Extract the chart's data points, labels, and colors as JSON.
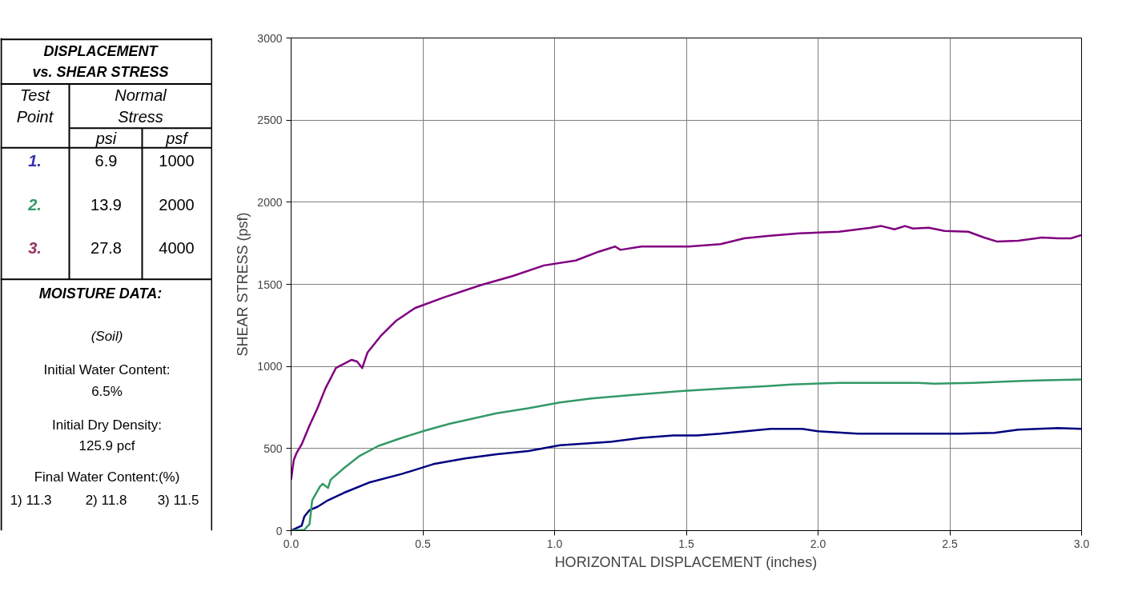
{
  "chart_data": [
    {
      "type": "other",
      "title": "DISPLACEMENT vs. SHEAR STRESS",
      "colors": [
        "#3333aa",
        "#339966",
        "#993366"
      ],
      "annotations": [
        "Test Point",
        "Normal Stress",
        "psi",
        "psf",
        "1.",
        "6.9",
        "1000",
        "2.",
        "13.9",
        "2000",
        "3.",
        "27.8",
        "4000",
        "MOISTURE DATA:",
        "(Soil)",
        "Initial Water Content:",
        "6.5%",
        "Initial Dry Density:",
        "125.9 pcf",
        "Final Water Content:(%)",
        "1) 11.3",
        "2) 11.8",
        "3) 11.5"
      ]
    },
    {
      "type": "line",
      "xlabel": "HORIZONTAL DISPLACEMENT (inches)",
      "ylabel": "SHEAR STRESS (psf)",
      "xlim": [
        0,
        3
      ],
      "ylim": [
        0,
        3000
      ],
      "xticks": [
        {
          "value": 0,
          "label": "0.0"
        },
        {
          "value": 0.5,
          "label": "0.5"
        },
        {
          "value": 1,
          "label": "1.0"
        },
        {
          "value": 1.5,
          "label": "1.5"
        },
        {
          "value": 2,
          "label": "2.0"
        },
        {
          "value": 2.5,
          "label": "2.5"
        },
        {
          "value": 3,
          "label": "3.0"
        }
      ],
      "yticks": [
        0,
        500,
        1000,
        1500,
        2000,
        2500,
        3000
      ],
      "grid": true,
      "marker": "none",
      "line_style": "solid",
      "series": [
        {
          "color": "#000080",
          "x": [
            0,
            0.04,
            0.05,
            0.07,
            0.1,
            0.14,
            0.2,
            0.3,
            0.42,
            0.54,
            0.66,
            0.78,
            0.9,
            1.02,
            1.21,
            1.33,
            1.45,
            1.54,
            1.63,
            1.82,
            1.94,
            2.0,
            2.15,
            2.3,
            2.54,
            2.67,
            2.76,
            2.91,
            3.0
          ],
          "values": [
            0,
            30,
            85,
            125,
            145,
            185,
            230,
            295,
            345,
            405,
            440,
            465,
            485,
            520,
            540,
            565,
            580,
            580,
            590,
            620,
            620,
            605,
            590,
            590,
            590,
            595,
            615,
            625,
            620
          ]
        },
        {
          "color": "#339966",
          "x": [
            0,
            0.05,
            0.07,
            0.08,
            0.11,
            0.12,
            0.14,
            0.15,
            0.2,
            0.26,
            0.33,
            0.42,
            0.51,
            0.6,
            0.78,
            0.9,
            1.02,
            1.14,
            1.29,
            1.48,
            1.63,
            1.81,
            1.9,
            2.08,
            2.23,
            2.38,
            2.44,
            2.59,
            2.74,
            2.86,
            3.0
          ],
          "values": [
            0,
            5,
            40,
            185,
            270,
            285,
            260,
            310,
            380,
            455,
            515,
            565,
            610,
            650,
            715,
            745,
            780,
            805,
            825,
            850,
            865,
            880,
            890,
            900,
            900,
            900,
            895,
            900,
            910,
            915,
            920
          ]
        },
        {
          "color": "#800080",
          "x": [
            0,
            0.01,
            0.02,
            0.04,
            0.07,
            0.1,
            0.13,
            0.17,
            0.23,
            0.25,
            0.27,
            0.29,
            0.34,
            0.4,
            0.47,
            0.58,
            0.72,
            0.84,
            0.96,
            1.08,
            1.17,
            1.23,
            1.25,
            1.33,
            1.51,
            1.63,
            1.72,
            1.81,
            1.93,
            2.08,
            2.2,
            2.24,
            2.29,
            2.33,
            2.36,
            2.42,
            2.48,
            2.57,
            2.63,
            2.68,
            2.76,
            2.85,
            2.91,
            2.96,
            3.0
          ],
          "values": [
            310,
            430,
            470,
            525,
            640,
            745,
            865,
            990,
            1040,
            1030,
            990,
            1085,
            1185,
            1280,
            1355,
            1420,
            1495,
            1550,
            1615,
            1645,
            1700,
            1730,
            1710,
            1730,
            1730,
            1745,
            1780,
            1795,
            1810,
            1820,
            1845,
            1855,
            1835,
            1855,
            1840,
            1845,
            1825,
            1820,
            1785,
            1760,
            1765,
            1785,
            1780,
            1780,
            1800
          ]
        }
      ]
    }
  ]
}
